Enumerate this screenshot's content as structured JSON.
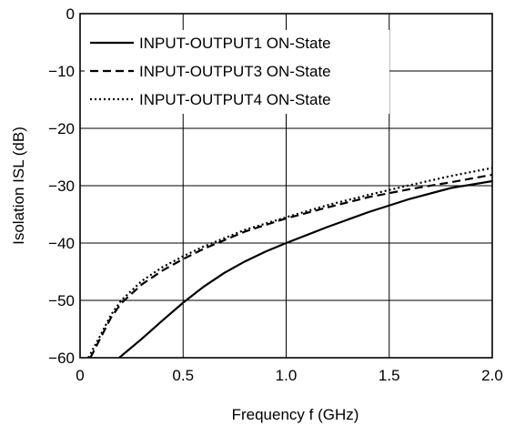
{
  "chart_data": {
    "type": "line",
    "title": "",
    "xlabel": "Frequency  f (GHz)",
    "ylabel": "Isolation  ISL (dB)",
    "xlim": [
      0,
      2.0
    ],
    "ylim": [
      -60,
      0
    ],
    "x_ticks": [
      "0",
      "0.5",
      "1.0",
      "1.5",
      "2.0"
    ],
    "y_ticks": [
      "0",
      "−10",
      "−20",
      "−30",
      "−40",
      "−50",
      "−60"
    ],
    "grid": true,
    "legend_position": "top-left",
    "series": [
      {
        "name": "INPUT-OUTPUT1 ON-State",
        "style": "solid",
        "x": [
          0.19,
          0.3,
          0.4,
          0.5,
          0.6,
          0.7,
          0.8,
          0.9,
          1.0,
          1.2,
          1.4,
          1.6,
          1.8,
          2.0
        ],
        "y": [
          -60,
          -56.7,
          -53.5,
          -50.4,
          -47.6,
          -45.2,
          -43.2,
          -41.5,
          -40.0,
          -37.2,
          -34.6,
          -32.3,
          -30.4,
          -29.2
        ]
      },
      {
        "name": "INPUT-OUTPUT3 ON-State",
        "style": "dashed",
        "x": [
          0.05,
          0.1,
          0.15,
          0.2,
          0.3,
          0.4,
          0.5,
          0.6,
          0.8,
          1.0,
          1.2,
          1.4,
          1.6,
          1.8,
          2.0
        ],
        "y": [
          -60,
          -56.5,
          -53.0,
          -50.5,
          -47.2,
          -44.8,
          -42.8,
          -41.0,
          -38.0,
          -35.7,
          -33.8,
          -32.0,
          -30.6,
          -29.4,
          -28.1
        ]
      },
      {
        "name": "INPUT-OUTPUT4 ON-State",
        "style": "dotted",
        "x": [
          0.04,
          0.1,
          0.15,
          0.2,
          0.3,
          0.4,
          0.5,
          0.6,
          0.8,
          1.0,
          1.2,
          1.4,
          1.6,
          1.8,
          2.0
        ],
        "y": [
          -60,
          -56.0,
          -52.5,
          -50.0,
          -46.6,
          -44.2,
          -42.3,
          -40.6,
          -37.7,
          -35.5,
          -33.4,
          -31.6,
          -29.9,
          -28.3,
          -26.9
        ]
      }
    ]
  }
}
